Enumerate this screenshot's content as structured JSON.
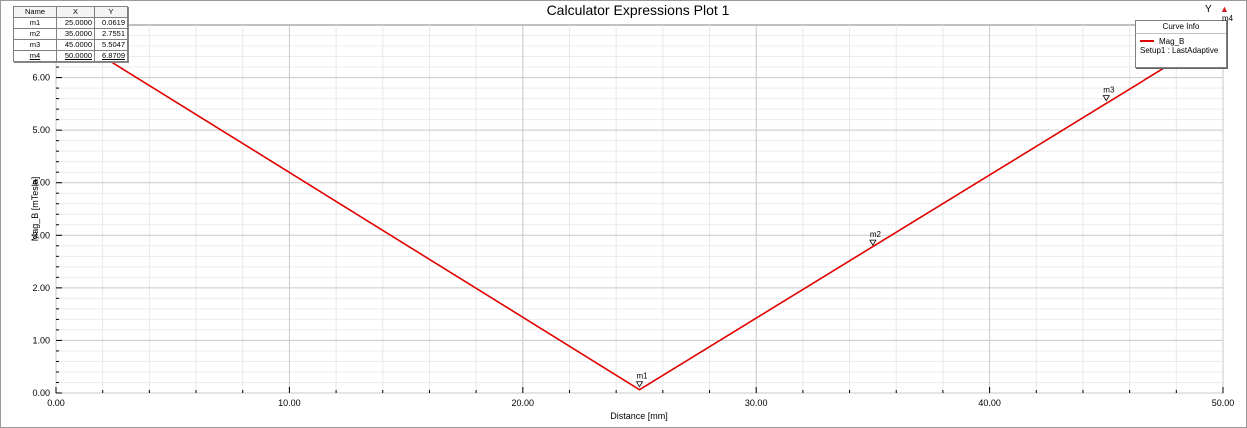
{
  "chart_data": {
    "type": "line",
    "title": "Calculator Expressions Plot 1",
    "xlabel": "Distance [mm]",
    "ylabel": "Mag_B [mTesla]",
    "xlim": [
      0,
      50
    ],
    "ylim": [
      0,
      7
    ],
    "x_ticks": [
      "0.00",
      "10.00",
      "20.00",
      "30.00",
      "40.00",
      "50.00"
    ],
    "x_tick_values": [
      0,
      10,
      20,
      30,
      40,
      50
    ],
    "y_ticks": [
      "0.00",
      "1.00",
      "2.00",
      "3.00",
      "4.00",
      "5.00",
      "6.00"
    ],
    "y_tick_values": [
      0,
      1,
      2,
      3,
      4,
      5,
      6
    ],
    "grid": true,
    "series": [
      {
        "name": "Mag_B",
        "color": "#e00000",
        "x": [
          0,
          25,
          50
        ],
        "y": [
          6.95,
          0.0619,
          6.8709
        ]
      }
    ],
    "markers": [
      {
        "name": "m1",
        "x": "25.0000",
        "y": "0.0619",
        "xv": 25,
        "yv": 0.0619
      },
      {
        "name": "m2",
        "x": "35.0000",
        "y": "2.7551",
        "xv": 35,
        "yv": 2.7551
      },
      {
        "name": "m3",
        "x": "45.0000",
        "y": "5.5047",
        "xv": 45,
        "yv": 5.5047
      },
      {
        "name": "m4",
        "x": "50.0000",
        "y": "6.8709",
        "xv": 50,
        "yv": 6.8709
      }
    ],
    "marker_table_headers": {
      "name": "Name",
      "x": "X",
      "y": "Y"
    },
    "legend": {
      "title": "Curve Info",
      "entry": "Mag_B",
      "sub": "Setup1 : LastAdaptive",
      "placement": "top-right"
    },
    "corner_label": "Y"
  }
}
